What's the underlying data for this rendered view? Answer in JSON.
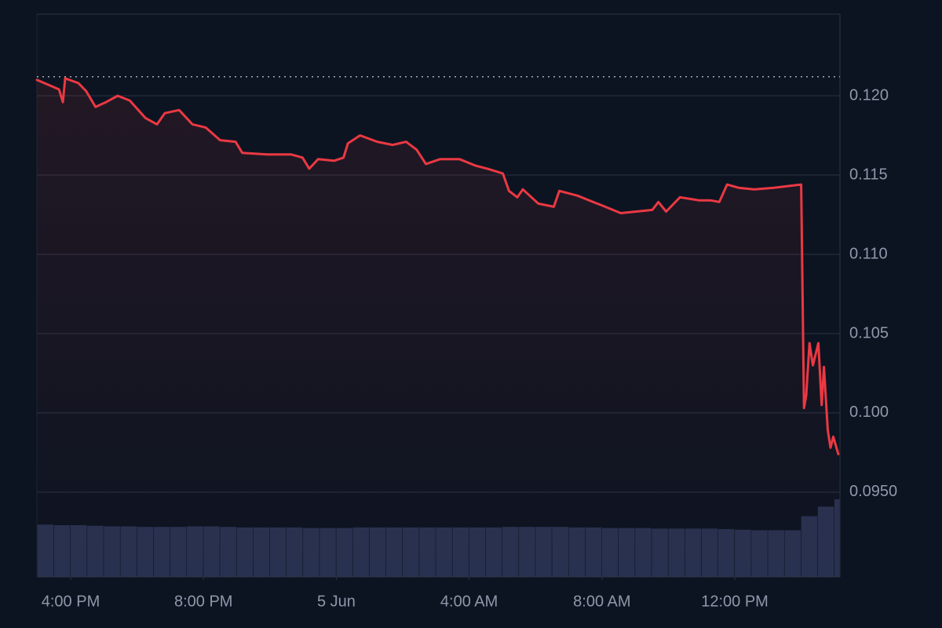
{
  "chart_data": {
    "type": "line",
    "color": "#ea3943",
    "x": [
      "4 Jun 14:59",
      "4 Jun 15:39",
      "4 Jun 15:46",
      "4 Jun 15:50",
      "4 Jun 16:14",
      "4 Jun 16:28",
      "4 Jun 16:45",
      "4 Jun 17:04",
      "4 Jun 17:25",
      "4 Jun 17:47",
      "4 Jun 18:15",
      "4 Jun 18:36",
      "4 Jun 18:50",
      "4 Jun 19:16",
      "4 Jun 19:40",
      "4 Jun 20:04",
      "4 Jun 20:30",
      "4 Jun 20:58",
      "4 Jun 21:10",
      "4 Jun 21:55",
      "4 Jun 22:38",
      "4 Jun 22:59",
      "4 Jun 23:11",
      "4 Jun 23:27",
      "4 Jun 23:56",
      "5 Jun 00:13",
      "5 Jun 00:21",
      "5 Jun 00:43",
      "5 Jun 01:14",
      "5 Jun 01:42",
      "5 Jun 02:06",
      "5 Jun 02:25",
      "5 Jun 02:42",
      "5 Jun 03:07",
      "5 Jun 03:43",
      "5 Jun 04:11",
      "5 Jun 04:33",
      "5 Jun 05:01",
      "5 Jun 05:12",
      "5 Jun 05:27",
      "5 Jun 05:37",
      "5 Jun 06:05",
      "5 Jun 06:33",
      "5 Jun 06:43",
      "5 Jun 07:16",
      "5 Jun 07:37",
      "5 Jun 07:59",
      "5 Jun 08:34",
      "5 Jun 09:02",
      "5 Jun 09:31",
      "5 Jun 09:42",
      "5 Jun 09:56",
      "5 Jun 10:21",
      "5 Jun 10:56",
      "5 Jun 11:17",
      "5 Jun 11:32",
      "5 Jun 11:46",
      "5 Jun 12:07",
      "5 Jun 12:35",
      "5 Jun 13:10",
      "5 Jun 14:00",
      "5 Jun 14:05",
      "5 Jun 14:09",
      "5 Jun 14:15",
      "5 Jun 14:21",
      "5 Jun 14:31",
      "5 Jun 14:37",
      "5 Jun 14:41",
      "5 Jun 14:48",
      "5 Jun 14:53",
      "5 Jun 14:58",
      "5 Jun 15:07"
    ],
    "values": [
      0.121,
      0.1204,
      0.1196,
      0.1211,
      0.1208,
      0.1203,
      0.1193,
      0.1196,
      0.12,
      0.1197,
      0.1186,
      0.1182,
      0.1189,
      0.1191,
      0.1182,
      0.118,
      0.1172,
      0.1171,
      0.1164,
      0.1163,
      0.1163,
      0.1161,
      0.1154,
      0.116,
      0.1159,
      0.1161,
      0.117,
      0.1175,
      0.1171,
      0.1169,
      0.1171,
      0.1166,
      0.1157,
      0.116,
      0.116,
      0.1156,
      0.1154,
      0.1151,
      0.114,
      0.1136,
      0.1141,
      0.1132,
      0.113,
      0.114,
      0.1137,
      0.1134,
      0.1131,
      0.1126,
      0.1127,
      0.1128,
      0.1133,
      0.1127,
      0.1136,
      0.1134,
      0.1134,
      0.1133,
      0.1144,
      0.1142,
      0.1141,
      0.1142,
      0.1144,
      0.1003,
      0.1011,
      0.1044,
      0.103,
      0.1044,
      0.1005,
      0.1029,
      0.0989,
      0.0978,
      0.0985,
      0.0974
    ],
    "reference_line": 0.1212,
    "volume": {
      "color": "#28314f",
      "axis": "y2",
      "x": [
        "4 Jun 15:00",
        "4 Jun 15:30",
        "4 Jun 16:00",
        "4 Jun 16:30",
        "4 Jun 17:00",
        "4 Jun 17:30",
        "4 Jun 18:00",
        "4 Jun 18:30",
        "4 Jun 19:00",
        "4 Jun 19:30",
        "4 Jun 20:00",
        "4 Jun 20:30",
        "4 Jun 21:00",
        "4 Jun 21:30",
        "4 Jun 22:00",
        "4 Jun 22:30",
        "4 Jun 23:00",
        "4 Jun 23:30",
        "5 Jun 00:00",
        "5 Jun 00:30",
        "5 Jun 01:00",
        "5 Jun 01:30",
        "5 Jun 02:00",
        "5 Jun 02:30",
        "5 Jun 03:00",
        "5 Jun 03:30",
        "5 Jun 04:00",
        "5 Jun 04:30",
        "5 Jun 05:00",
        "5 Jun 05:30",
        "5 Jun 06:00",
        "5 Jun 06:30",
        "5 Jun 07:00",
        "5 Jun 07:30",
        "5 Jun 08:00",
        "5 Jun 08:30",
        "5 Jun 09:00",
        "5 Jun 09:30",
        "5 Jun 10:00",
        "5 Jun 10:30",
        "5 Jun 11:00",
        "5 Jun 11:30",
        "5 Jun 12:00",
        "5 Jun 12:30",
        "5 Jun 13:00",
        "5 Jun 13:30",
        "5 Jun 14:00",
        "5 Jun 14:30",
        "5 Jun 15:00"
      ],
      "values": [
        9.3,
        9.2,
        9.2,
        9.1,
        9.0,
        9.0,
        8.9,
        8.9,
        8.9,
        9.0,
        9.0,
        8.9,
        8.8,
        8.8,
        8.8,
        8.8,
        8.7,
        8.7,
        8.7,
        8.8,
        8.8,
        8.8,
        8.8,
        8.8,
        8.8,
        8.8,
        8.8,
        8.8,
        8.9,
        8.9,
        8.9,
        8.9,
        8.8,
        8.8,
        8.7,
        8.7,
        8.7,
        8.6,
        8.6,
        8.6,
        8.6,
        8.5,
        8.4,
        8.3,
        8.3,
        8.3,
        10.8,
        12.5,
        13.8
      ]
    },
    "xlim": [
      "4 Jun 14:59",
      "5 Jun 15:10"
    ],
    "xticks": [
      {
        "value": "4 Jun 16:00",
        "label": "4:00 PM"
      },
      {
        "value": "4 Jun 20:00",
        "label": "8:00 PM"
      },
      {
        "value": "5 Jun 00:00",
        "label": "5 Jun"
      },
      {
        "value": "5 Jun 04:00",
        "label": "4:00 AM"
      },
      {
        "value": "5 Jun 08:00",
        "label": "8:00 AM"
      },
      {
        "value": "5 Jun 12:00",
        "label": "12:00 PM"
      }
    ],
    "ylim": [
      0.08965,
      0.12515
    ],
    "yticks": [
      {
        "value": 0.095,
        "label": "0.0950"
      },
      {
        "value": 0.1,
        "label": "0.100"
      },
      {
        "value": 0.105,
        "label": "0.105"
      },
      {
        "value": 0.11,
        "label": "0.110"
      },
      {
        "value": 0.115,
        "label": "0.115"
      },
      {
        "value": 0.12,
        "label": "0.120"
      }
    ],
    "y2lim": [
      0,
      100
    ],
    "grid": true
  }
}
